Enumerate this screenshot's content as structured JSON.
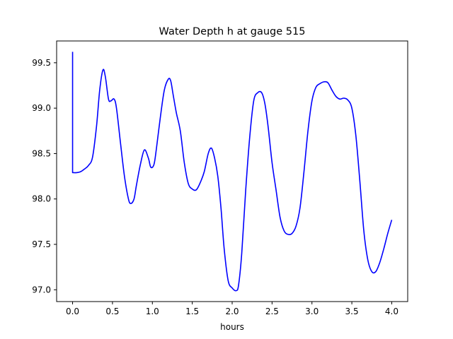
{
  "chart_data": {
    "type": "line",
    "title": "Water Depth h at gauge 515",
    "xlabel": "hours",
    "ylabel": "",
    "xlim": [
      -0.2,
      4.2
    ],
    "ylim": [
      96.87,
      99.74
    ],
    "xticks": [
      0.0,
      0.5,
      1.0,
      1.5,
      2.0,
      2.5,
      3.0,
      3.5,
      4.0
    ],
    "xtick_labels": [
      "0.0",
      "0.5",
      "1.0",
      "1.5",
      "2.0",
      "2.5",
      "3.0",
      "3.5",
      "4.0"
    ],
    "yticks": [
      97.0,
      97.5,
      98.0,
      98.5,
      99.0,
      99.5
    ],
    "ytick_labels": [
      "97.0",
      "97.5",
      "98.0",
      "98.5",
      "99.0",
      "99.5"
    ],
    "grid": false,
    "legend": "none",
    "series": [
      {
        "color": "#0000ff",
        "x": [
          0.0,
          0.0,
          0.05,
          0.1,
          0.15,
          0.2,
          0.25,
          0.3,
          0.34,
          0.38,
          0.41,
          0.45,
          0.48,
          0.52,
          0.55,
          0.6,
          0.65,
          0.7,
          0.73,
          0.77,
          0.8,
          0.85,
          0.9,
          0.95,
          0.98,
          1.02,
          1.05,
          1.1,
          1.15,
          1.2,
          1.23,
          1.26,
          1.3,
          1.35,
          1.4,
          1.45,
          1.5,
          1.55,
          1.6,
          1.65,
          1.7,
          1.74,
          1.78,
          1.82,
          1.86,
          1.9,
          1.95,
          2.0,
          2.05,
          2.08,
          2.12,
          2.17,
          2.22,
          2.27,
          2.32,
          2.37,
          2.41,
          2.45,
          2.5,
          2.55,
          2.6,
          2.65,
          2.7,
          2.75,
          2.8,
          2.85,
          2.9,
          2.95,
          3.0,
          3.05,
          3.1,
          3.15,
          3.2,
          3.25,
          3.3,
          3.35,
          3.4,
          3.45,
          3.5,
          3.55,
          3.6,
          3.65,
          3.7,
          3.75,
          3.8,
          3.85,
          3.9,
          3.95,
          4.0
        ],
        "y": [
          99.62,
          98.29,
          98.29,
          98.3,
          98.33,
          98.37,
          98.46,
          98.8,
          99.2,
          99.42,
          99.35,
          99.1,
          99.08,
          99.1,
          99.0,
          98.62,
          98.25,
          98.0,
          97.95,
          98.0,
          98.15,
          98.38,
          98.54,
          98.45,
          98.35,
          98.38,
          98.55,
          98.9,
          99.2,
          99.32,
          99.3,
          99.15,
          98.95,
          98.75,
          98.4,
          98.17,
          98.11,
          98.1,
          98.18,
          98.3,
          98.5,
          98.56,
          98.45,
          98.25,
          97.9,
          97.45,
          97.1,
          97.02,
          96.99,
          97.05,
          97.4,
          98.1,
          98.68,
          99.08,
          99.17,
          99.17,
          99.05,
          98.8,
          98.4,
          98.1,
          97.8,
          97.65,
          97.61,
          97.62,
          97.7,
          97.9,
          98.3,
          98.75,
          99.08,
          99.23,
          99.27,
          99.29,
          99.28,
          99.2,
          99.13,
          99.1,
          99.11,
          99.09,
          99.0,
          98.7,
          98.2,
          97.65,
          97.33,
          97.2,
          97.2,
          97.3,
          97.45,
          97.62,
          97.77
        ]
      }
    ]
  }
}
